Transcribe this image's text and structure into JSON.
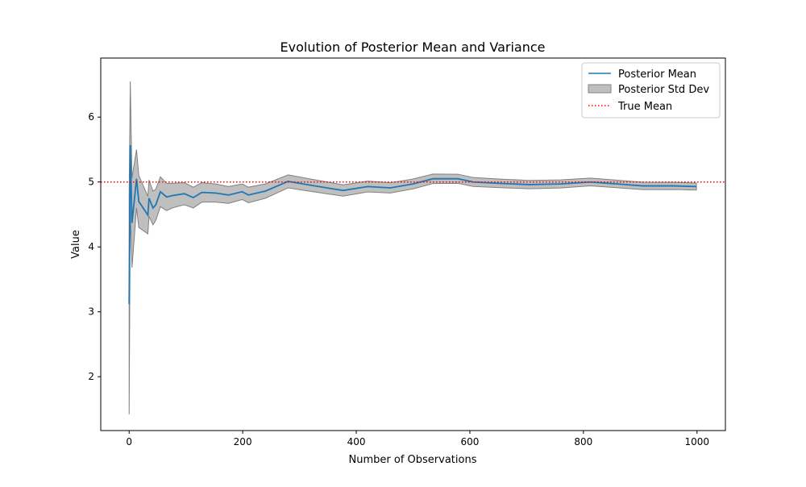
{
  "chart_data": {
    "type": "line",
    "title": "Evolution of Posterior Mean and Variance",
    "xlabel": "Number of Observations",
    "ylabel": "Value",
    "xlim": [
      -50,
      1050
    ],
    "ylim": [
      1.17,
      6.91
    ],
    "xticks": [
      0,
      200,
      400,
      600,
      800,
      1000
    ],
    "yticks": [
      2,
      3,
      4,
      5,
      6
    ],
    "grid": false,
    "legend_position": "top-right",
    "x": [
      0,
      2,
      5,
      13,
      17,
      33,
      35,
      42,
      47,
      55,
      66,
      76,
      97,
      113,
      128,
      152,
      175,
      199,
      210,
      240,
      280,
      320,
      362,
      377,
      420,
      460,
      500,
      535,
      579,
      606,
      650,
      704,
      760,
      812,
      860,
      904,
      960,
      999
    ],
    "series": [
      {
        "name": "Posterior Mean",
        "kind": "line",
        "color": "#1f77b4",
        "values": [
          3.12,
          5.57,
          4.37,
          5.05,
          4.7,
          4.49,
          4.75,
          4.6,
          4.65,
          4.85,
          4.77,
          4.79,
          4.82,
          4.76,
          4.84,
          4.83,
          4.8,
          4.85,
          4.8,
          4.86,
          5.01,
          4.95,
          4.89,
          4.87,
          4.93,
          4.91,
          4.97,
          5.05,
          5.05,
          5.0,
          4.98,
          4.96,
          4.97,
          5.0,
          4.97,
          4.94,
          4.94,
          4.93
        ]
      },
      {
        "name": "Posterior Std Dev",
        "kind": "band",
        "color": "#808080",
        "values": [
          1.7,
          0.98,
          0.69,
          0.45,
          0.4,
          0.29,
          0.28,
          0.26,
          0.24,
          0.23,
          0.21,
          0.19,
          0.17,
          0.16,
          0.15,
          0.14,
          0.13,
          0.12,
          0.12,
          0.11,
          0.1,
          0.095,
          0.089,
          0.087,
          0.083,
          0.079,
          0.076,
          0.073,
          0.07,
          0.069,
          0.066,
          0.064,
          0.062,
          0.06,
          0.058,
          0.056,
          0.055,
          0.054
        ]
      },
      {
        "name": "True Mean",
        "kind": "hline",
        "color": "#ff0000",
        "value": 5
      }
    ]
  }
}
